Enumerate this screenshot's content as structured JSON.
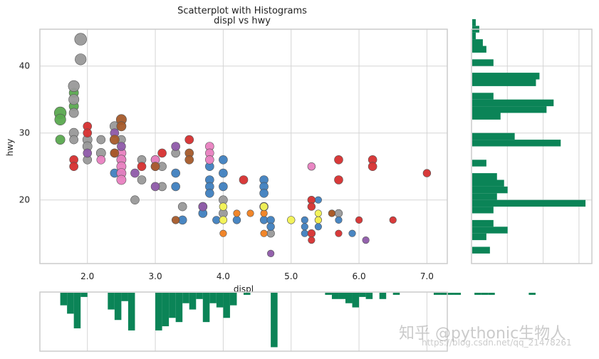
{
  "colors": {
    "grid": "#d5d5d5",
    "frame": "#cccccc",
    "hist": "#0b8457",
    "point_edge": "#555555",
    "palette": [
      "#5aa94f",
      "#999999",
      "#3f7fbf",
      "#d62f2f",
      "#f07f1f",
      "#e87fc0",
      "#8e5aa9",
      "#a55a2a",
      "#f2f252"
    ]
  },
  "chart_data": {
    "type": "scatter",
    "title": "Scatterplot with Histograms",
    "subtitle": "displ vs hwy",
    "xlabel": "displ",
    "ylabel": "hwy",
    "xlim": [
      1.3,
      7.3
    ],
    "ylim": [
      10.5,
      45.5
    ],
    "xticks": [
      2.0,
      3.0,
      4.0,
      5.0,
      6.0,
      7.0
    ],
    "xtick_labels": [
      "2.0",
      "3.0",
      "4.0",
      "5.0",
      "6.0",
      "7.0"
    ],
    "yticks": [
      20,
      30,
      40
    ],
    "ytick_labels": [
      "20",
      "30",
      "40"
    ],
    "grid": true,
    "points": [
      {
        "x": 1.6,
        "y": 33,
        "c": 0,
        "s": 1.4
      },
      {
        "x": 1.6,
        "y": 32,
        "c": 0,
        "s": 1.3
      },
      {
        "x": 1.6,
        "y": 29,
        "c": 0,
        "s": 1.1
      },
      {
        "x": 1.8,
        "y": 36,
        "c": 0,
        "s": 1.1
      },
      {
        "x": 1.8,
        "y": 34,
        "c": 0,
        "s": 1.1
      },
      {
        "x": 1.9,
        "y": 44,
        "c": 1,
        "s": 1.4
      },
      {
        "x": 1.9,
        "y": 41,
        "c": 1,
        "s": 1.3
      },
      {
        "x": 1.8,
        "y": 37,
        "c": 1,
        "s": 1.3
      },
      {
        "x": 1.8,
        "y": 35,
        "c": 1,
        "s": 1.2
      },
      {
        "x": 1.8,
        "y": 33,
        "c": 1,
        "s": 1.1
      },
      {
        "x": 1.8,
        "y": 30,
        "c": 1,
        "s": 1.1
      },
      {
        "x": 1.8,
        "y": 29,
        "c": 1,
        "s": 1
      },
      {
        "x": 2.0,
        "y": 29,
        "c": 1,
        "s": 1.1
      },
      {
        "x": 2.0,
        "y": 28,
        "c": 1,
        "s": 1.1
      },
      {
        "x": 2.0,
        "y": 26,
        "c": 1,
        "s": 1
      },
      {
        "x": 2.2,
        "y": 27,
        "c": 1,
        "s": 1.1
      },
      {
        "x": 2.2,
        "y": 29,
        "c": 1,
        "s": 1
      },
      {
        "x": 2.4,
        "y": 31,
        "c": 1,
        "s": 1.1
      },
      {
        "x": 2.5,
        "y": 29,
        "c": 1,
        "s": 1
      },
      {
        "x": 2.5,
        "y": 26,
        "c": 1,
        "s": 1
      },
      {
        "x": 2.7,
        "y": 20,
        "c": 1,
        "s": 1
      },
      {
        "x": 2.8,
        "y": 26,
        "c": 1,
        "s": 1
      },
      {
        "x": 2.8,
        "y": 23,
        "c": 1,
        "s": 1
      },
      {
        "x": 3.0,
        "y": 26,
        "c": 1,
        "s": 1
      },
      {
        "x": 3.1,
        "y": 25,
        "c": 1,
        "s": 1
      },
      {
        "x": 3.3,
        "y": 27,
        "c": 1,
        "s": 1
      },
      {
        "x": 3.4,
        "y": 19,
        "c": 1,
        "s": 1
      },
      {
        "x": 3.7,
        "y": 19,
        "c": 1,
        "s": 1
      },
      {
        "x": 4.0,
        "y": 20,
        "c": 1,
        "s": 1
      },
      {
        "x": 4.0,
        "y": 18,
        "c": 1,
        "s": 1
      },
      {
        "x": 4.6,
        "y": 19,
        "c": 1,
        "s": 1
      },
      {
        "x": 4.7,
        "y": 15,
        "c": 1,
        "s": 0.9
      },
      {
        "x": 5.7,
        "y": 18,
        "c": 1,
        "s": 0.9
      },
      {
        "x": 3.1,
        "y": 22,
        "c": 1,
        "s": 1
      },
      {
        "x": 2.4,
        "y": 24,
        "c": 2,
        "s": 1
      },
      {
        "x": 2.5,
        "y": 24,
        "c": 2,
        "s": 1
      },
      {
        "x": 3.3,
        "y": 24,
        "c": 2,
        "s": 1
      },
      {
        "x": 3.3,
        "y": 22,
        "c": 2,
        "s": 1
      },
      {
        "x": 3.4,
        "y": 17,
        "c": 2,
        "s": 1
      },
      {
        "x": 3.7,
        "y": 18,
        "c": 2,
        "s": 1
      },
      {
        "x": 3.8,
        "y": 23,
        "c": 2,
        "s": 1
      },
      {
        "x": 3.8,
        "y": 22,
        "c": 2,
        "s": 1
      },
      {
        "x": 3.8,
        "y": 21,
        "c": 2,
        "s": 1
      },
      {
        "x": 3.8,
        "y": 25,
        "c": 2,
        "s": 1
      },
      {
        "x": 3.9,
        "y": 17,
        "c": 2,
        "s": 0.9
      },
      {
        "x": 4.0,
        "y": 26,
        "c": 2,
        "s": 1
      },
      {
        "x": 4.0,
        "y": 24,
        "c": 2,
        "s": 1
      },
      {
        "x": 4.0,
        "y": 22,
        "c": 2,
        "s": 1
      },
      {
        "x": 4.2,
        "y": 17,
        "c": 2,
        "s": 0.9
      },
      {
        "x": 4.6,
        "y": 23,
        "c": 2,
        "s": 1
      },
      {
        "x": 4.6,
        "y": 22,
        "c": 2,
        "s": 1
      },
      {
        "x": 4.6,
        "y": 21,
        "c": 2,
        "s": 1
      },
      {
        "x": 4.6,
        "y": 17,
        "c": 2,
        "s": 0.9
      },
      {
        "x": 4.7,
        "y": 17,
        "c": 2,
        "s": 0.9
      },
      {
        "x": 4.7,
        "y": 16,
        "c": 2,
        "s": 0.9
      },
      {
        "x": 5.2,
        "y": 17,
        "c": 2,
        "s": 0.8
      },
      {
        "x": 5.2,
        "y": 16,
        "c": 2,
        "s": 0.8
      },
      {
        "x": 5.2,
        "y": 15,
        "c": 2,
        "s": 0.8
      },
      {
        "x": 5.4,
        "y": 20,
        "c": 2,
        "s": 0.8
      },
      {
        "x": 5.4,
        "y": 16,
        "c": 2,
        "s": 0.8
      },
      {
        "x": 5.7,
        "y": 17,
        "c": 2,
        "s": 0.8
      },
      {
        "x": 5.9,
        "y": 15,
        "c": 2,
        "s": 0.8
      },
      {
        "x": 1.8,
        "y": 26,
        "c": 3,
        "s": 1
      },
      {
        "x": 1.8,
        "y": 25,
        "c": 3,
        "s": 1
      },
      {
        "x": 2.0,
        "y": 31,
        "c": 3,
        "s": 1
      },
      {
        "x": 2.0,
        "y": 30,
        "c": 3,
        "s": 1
      },
      {
        "x": 2.4,
        "y": 27,
        "c": 3,
        "s": 1
      },
      {
        "x": 2.8,
        "y": 25,
        "c": 3,
        "s": 1
      },
      {
        "x": 3.1,
        "y": 27,
        "c": 3,
        "s": 1
      },
      {
        "x": 3.5,
        "y": 29,
        "c": 3,
        "s": 1
      },
      {
        "x": 4.3,
        "y": 23,
        "c": 3,
        "s": 1
      },
      {
        "x": 5.3,
        "y": 20,
        "c": 3,
        "s": 0.9
      },
      {
        "x": 5.3,
        "y": 19,
        "c": 3,
        "s": 0.9
      },
      {
        "x": 5.3,
        "y": 15,
        "c": 3,
        "s": 0.9
      },
      {
        "x": 5.3,
        "y": 14,
        "c": 3,
        "s": 0.8
      },
      {
        "x": 5.7,
        "y": 26,
        "c": 3,
        "s": 1
      },
      {
        "x": 5.7,
        "y": 23,
        "c": 3,
        "s": 1
      },
      {
        "x": 5.7,
        "y": 15,
        "c": 3,
        "s": 0.8
      },
      {
        "x": 6.0,
        "y": 17,
        "c": 3,
        "s": 0.8
      },
      {
        "x": 6.2,
        "y": 26,
        "c": 3,
        "s": 1
      },
      {
        "x": 6.2,
        "y": 25,
        "c": 3,
        "s": 1
      },
      {
        "x": 6.5,
        "y": 17,
        "c": 3,
        "s": 0.8
      },
      {
        "x": 7.0,
        "y": 24,
        "c": 3,
        "s": 0.9
      },
      {
        "x": 4.0,
        "y": 15,
        "c": 4,
        "s": 0.8
      },
      {
        "x": 4.2,
        "y": 18,
        "c": 4,
        "s": 0.8
      },
      {
        "x": 4.4,
        "y": 18,
        "c": 4,
        "s": 0.8
      },
      {
        "x": 4.6,
        "y": 18,
        "c": 4,
        "s": 0.8
      },
      {
        "x": 4.6,
        "y": 15,
        "c": 4,
        "s": 0.8
      },
      {
        "x": 5.4,
        "y": 17,
        "c": 4,
        "s": 0.8
      },
      {
        "x": 5.6,
        "y": 18,
        "c": 4,
        "s": 0.8
      },
      {
        "x": 2.5,
        "y": 27,
        "c": 5,
        "s": 1.1
      },
      {
        "x": 2.5,
        "y": 26,
        "c": 5,
        "s": 1.1
      },
      {
        "x": 2.5,
        "y": 25,
        "c": 5,
        "s": 1.1
      },
      {
        "x": 2.5,
        "y": 24,
        "c": 5,
        "s": 1.1
      },
      {
        "x": 2.5,
        "y": 23,
        "c": 5,
        "s": 1.1
      },
      {
        "x": 3.0,
        "y": 26,
        "c": 5,
        "s": 1
      },
      {
        "x": 3.0,
        "y": 25,
        "c": 5,
        "s": 1
      },
      {
        "x": 3.8,
        "y": 28,
        "c": 5,
        "s": 1
      },
      {
        "x": 3.8,
        "y": 27,
        "c": 5,
        "s": 1
      },
      {
        "x": 3.8,
        "y": 26,
        "c": 5,
        "s": 1
      },
      {
        "x": 5.3,
        "y": 25,
        "c": 5,
        "s": 0.9
      },
      {
        "x": 2.2,
        "y": 26,
        "c": 5,
        "s": 1
      },
      {
        "x": 2.0,
        "y": 27,
        "c": 6,
        "s": 1
      },
      {
        "x": 2.4,
        "y": 30,
        "c": 6,
        "s": 1
      },
      {
        "x": 2.5,
        "y": 28,
        "c": 6,
        "s": 1
      },
      {
        "x": 2.7,
        "y": 24,
        "c": 6,
        "s": 1
      },
      {
        "x": 3.0,
        "y": 22,
        "c": 6,
        "s": 1
      },
      {
        "x": 3.3,
        "y": 28,
        "c": 6,
        "s": 1
      },
      {
        "x": 3.7,
        "y": 19,
        "c": 6,
        "s": 1
      },
      {
        "x": 4.7,
        "y": 12,
        "c": 6,
        "s": 0.8
      },
      {
        "x": 6.1,
        "y": 14,
        "c": 6,
        "s": 0.8
      },
      {
        "x": 2.4,
        "y": 29,
        "c": 7,
        "s": 1.1
      },
      {
        "x": 2.5,
        "y": 32,
        "c": 7,
        "s": 1.2
      },
      {
        "x": 2.5,
        "y": 31,
        "c": 7,
        "s": 1.1
      },
      {
        "x": 2.4,
        "y": 27,
        "c": 7,
        "s": 1
      },
      {
        "x": 3.0,
        "y": 25,
        "c": 7,
        "s": 1
      },
      {
        "x": 3.5,
        "y": 27,
        "c": 7,
        "s": 1
      },
      {
        "x": 3.5,
        "y": 26,
        "c": 7,
        "s": 1
      },
      {
        "x": 3.3,
        "y": 17,
        "c": 7,
        "s": 0.9
      },
      {
        "x": 5.6,
        "y": 18,
        "c": 7,
        "s": 0.8
      },
      {
        "x": 4.0,
        "y": 19,
        "c": 8,
        "s": 0.9
      },
      {
        "x": 4.0,
        "y": 17,
        "c": 8,
        "s": 0.9
      },
      {
        "x": 4.6,
        "y": 19,
        "c": 8,
        "s": 0.9
      },
      {
        "x": 5.0,
        "y": 17,
        "c": 8,
        "s": 0.9
      },
      {
        "x": 5.4,
        "y": 18,
        "c": 8,
        "s": 0.8
      },
      {
        "x": 5.4,
        "y": 17,
        "c": 8,
        "s": 0.8
      }
    ],
    "hist_x": {
      "bin_start": 1.6,
      "bin_width": 0.1,
      "counts": [
        6,
        10,
        17,
        2,
        0,
        0,
        0,
        8,
        13,
        4,
        18,
        0,
        0,
        0,
        18,
        16,
        12,
        14,
        5,
        8,
        3,
        14,
        5,
        7,
        12,
        6,
        0,
        1,
        0,
        0,
        0,
        26,
        0,
        0,
        0,
        0,
        0,
        0,
        0,
        1,
        3,
        3,
        5,
        7,
        2,
        3,
        0,
        3,
        0,
        1,
        0,
        0,
        0,
        0,
        0,
        1,
        1,
        1,
        1,
        0,
        0,
        1,
        1,
        1,
        0,
        0,
        0,
        0,
        0,
        1
      ]
    },
    "hist_y": {
      "bin_start": 12,
      "bin_width": 1,
      "counts": [
        5,
        0,
        4,
        10,
        6,
        0,
        6,
        32,
        7,
        10,
        9,
        7,
        0,
        4,
        0,
        0,
        25,
        12,
        0,
        0,
        8,
        21,
        23,
        6,
        0,
        18,
        19,
        0,
        6,
        0,
        4,
        3,
        1,
        2,
        1,
        0,
        0,
        0,
        0,
        0,
        1,
        0,
        0,
        0,
        1
      ]
    }
  },
  "watermark": {
    "main": "知乎 @pythonic生物人",
    "url": "https://blog.csdn.net/qq_21478261"
  }
}
